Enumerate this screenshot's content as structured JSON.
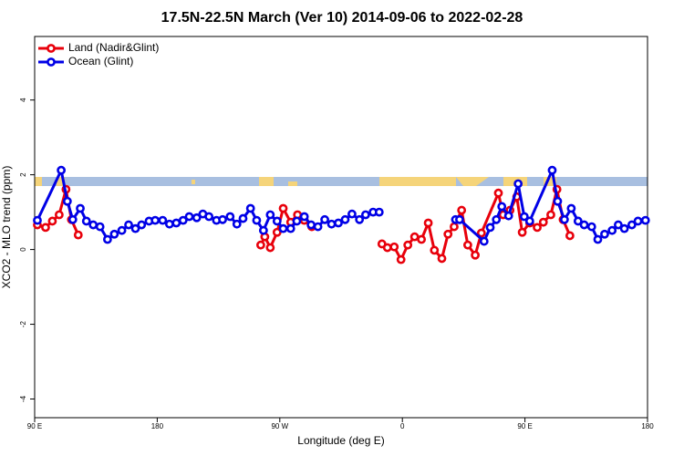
{
  "chart_data": {
    "type": "line",
    "title": "17.5N-22.5N March (Ver 10)   2014-09-06 to 2022-02-28",
    "x_label": "Longitude (deg E)",
    "y_label": "XCO2 - MLO trend (ppm)",
    "xlim": [
      90,
      540
    ],
    "ylim": [
      -4.5,
      5.7
    ],
    "xticks": [
      {
        "value": 90,
        "label": "90 E"
      },
      180,
      {
        "value": 270,
        "label": "90 W"
      },
      {
        "value": 360,
        "label": "0"
      },
      {
        "value": 450,
        "label": "90 E"
      },
      {
        "value": 540,
        "label": "180"
      }
    ],
    "yticks": [
      -4,
      -2,
      0,
      2,
      4
    ],
    "legend": "top-left",
    "series": [
      {
        "name": "Land (Nadir&Glint)",
        "color": "#e8000b",
        "x": [
          92,
          98,
          103,
          108,
          113,
          117,
          122,
          null,
          256,
          259,
          263,
          268,
          272.5,
          278,
          283,
          288,
          293.5,
          null,
          345,
          349,
          354,
          359,
          364,
          369,
          374,
          379,
          383.5,
          389,
          393.5,
          398,
          403.5,
          408,
          413.5,
          418,
          430.5,
          434,
          439,
          444,
          448,
          453.5,
          459,
          463.5,
          469,
          473.5,
          478,
          483
        ],
        "values": [
          0.66,
          0.59,
          0.76,
          0.93,
          1.61,
          0.8,
          0.39,
          null,
          0.12,
          0.34,
          0.05,
          0.46,
          1.1,
          0.73,
          0.93,
          0.78,
          0.61,
          null,
          0.15,
          0.05,
          0.07,
          -0.27,
          0.12,
          0.34,
          0.27,
          0.71,
          -0.02,
          -0.24,
          0.41,
          0.61,
          1.05,
          0.12,
          -0.15,
          0.44,
          1.51,
          0.93,
          1.05,
          1.41,
          0.46,
          0.71,
          0.59,
          0.73,
          0.93,
          1.61,
          0.8,
          0.37
        ]
      },
      {
        "name": "Ocean (Glint)",
        "color": "#0000e6",
        "x": [
          92,
          109.5,
          114,
          118,
          123.5,
          128,
          133,
          138,
          143.5,
          148.5,
          154,
          159,
          164,
          168.5,
          174,
          178.5,
          184,
          189,
          194,
          199,
          203.5,
          209,
          213.5,
          218,
          223.5,
          228,
          233.5,
          238.5,
          243,
          248.5,
          253,
          258,
          263,
          268,
          272.5,
          278,
          282.5,
          288,
          293,
          298,
          303,
          308,
          313,
          318,
          323,
          328.5,
          333,
          338.5,
          343,
          null,
          399,
          402,
          420,
          424.5,
          429,
          433,
          438,
          445,
          449.5,
          453.5,
          470,
          474,
          479,
          484,
          489,
          493.5,
          499,
          503.5,
          508.5,
          514,
          518.5,
          523,
          528.5,
          533,
          538.5
        ],
        "values": [
          0.78,
          2.12,
          1.29,
          0.8,
          1.1,
          0.76,
          0.66,
          0.61,
          0.27,
          0.41,
          0.51,
          0.66,
          0.56,
          0.66,
          0.76,
          0.78,
          0.78,
          0.68,
          0.71,
          0.78,
          0.88,
          0.85,
          0.95,
          0.88,
          0.78,
          0.8,
          0.88,
          0.68,
          0.83,
          1.1,
          0.78,
          0.51,
          0.93,
          0.76,
          0.56,
          0.56,
          0.76,
          0.88,
          0.66,
          0.61,
          0.8,
          0.68,
          0.71,
          0.8,
          0.95,
          0.8,
          0.93,
          1.0,
          1.0,
          null,
          0.8,
          0.8,
          0.22,
          0.59,
          0.8,
          1.15,
          0.9,
          1.76,
          0.88,
          0.76,
          2.12,
          1.29,
          0.8,
          1.1,
          0.76,
          0.66,
          0.61,
          0.27,
          0.41,
          0.51,
          0.66,
          0.56,
          0.66,
          0.76,
          0.78
        ]
      }
    ]
  }
}
